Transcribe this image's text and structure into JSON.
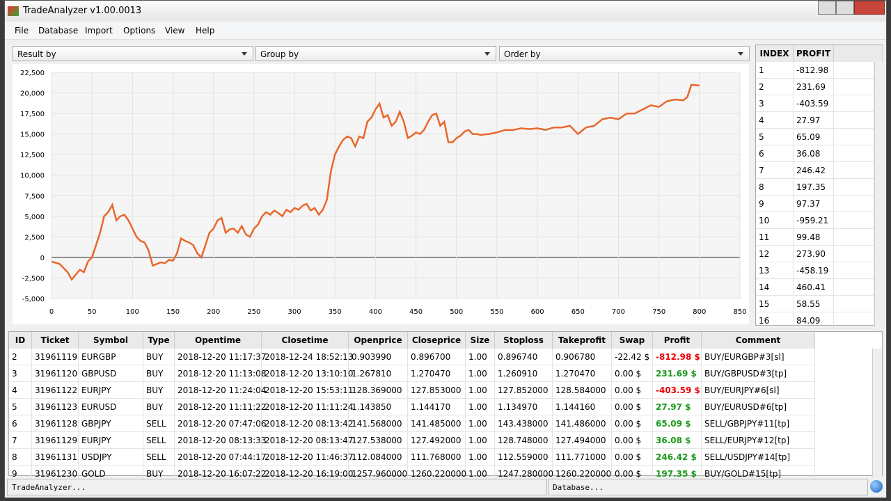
{
  "window_title": "TradeAnalyzer v1.00.0013",
  "menu": [
    "File",
    "Database",
    "Import",
    "Options",
    "View",
    "Help"
  ],
  "filters": [
    "Result by",
    "Group by",
    "Order by"
  ],
  "chart_data": {
    "type": "line",
    "color": "#e8672a",
    "grid": true,
    "x": [
      0,
      10,
      20,
      25,
      35,
      40,
      45,
      50,
      55,
      60,
      65,
      70,
      75,
      80,
      85,
      90,
      95,
      100,
      105,
      110,
      115,
      120,
      125,
      130,
      135,
      140,
      145,
      150,
      155,
      160,
      165,
      170,
      175,
      180,
      185,
      190,
      195,
      200,
      205,
      210,
      215,
      220,
      225,
      230,
      235,
      240,
      245,
      250,
      255,
      260,
      265,
      270,
      275,
      280,
      285,
      290,
      295,
      300,
      305,
      310,
      315,
      320,
      325,
      330,
      335,
      340,
      345,
      350,
      355,
      360,
      365,
      370,
      375,
      380,
      385,
      390,
      395,
      400,
      405,
      410,
      415,
      420,
      425,
      430,
      435,
      440,
      445,
      450,
      455,
      460,
      465,
      470,
      475,
      480,
      485,
      490,
      495,
      500,
      505,
      510,
      515,
      520,
      525,
      530,
      540,
      550,
      560,
      570,
      580,
      590,
      600,
      610,
      620,
      630,
      640,
      650,
      660,
      670,
      680,
      690,
      700,
      710,
      720,
      730,
      740,
      750,
      760,
      770,
      780,
      785,
      790,
      800
    ],
    "values": [
      -500,
      -800,
      -1800,
      -2700,
      -1500,
      -1800,
      -500,
      0,
      1500,
      3000,
      5000,
      5500,
      6400,
      4500,
      5000,
      5200,
      4500,
      3500,
      2500,
      2000,
      1800,
      800,
      -1000,
      -800,
      -600,
      -700,
      -300,
      -400,
      500,
      2300,
      2000,
      1800,
      1500,
      500,
      0,
      1500,
      3000,
      3500,
      4500,
      4800,
      3000,
      3400,
      3500,
      3000,
      3800,
      2800,
      2500,
      3500,
      4000,
      5000,
      5500,
      5200,
      5700,
      5400,
      5000,
      5800,
      5500,
      6000,
      5800,
      6300,
      6500,
      5700,
      6000,
      5200,
      5800,
      7000,
      10500,
      12500,
      13500,
      14300,
      14700,
      14500,
      13500,
      14700,
      14500,
      16500,
      17000,
      18000,
      18700,
      17000,
      17300,
      16000,
      16500,
      17700,
      16500,
      14500,
      14800,
      15200,
      15000,
      15500,
      16500,
      17300,
      17500,
      16000,
      16500,
      14000,
      14000,
      14500,
      14800,
      15300,
      15500,
      15000,
      15000,
      14900,
      15000,
      15200,
      15500,
      15500,
      15700,
      15600,
      15700,
      15500,
      15800,
      15800,
      16000,
      15000,
      15800,
      16000,
      16800,
      17000,
      16800,
      17500,
      17500,
      18000,
      18500,
      18300,
      19000,
      19200,
      19100,
      19500,
      21000,
      20900
    ],
    "xlim": [
      0,
      850
    ],
    "xticks": [
      0,
      50,
      100,
      150,
      200,
      250,
      300,
      350,
      400,
      450,
      500,
      550,
      600,
      650,
      700,
      750,
      800,
      850
    ],
    "ylim": [
      -5000,
      22500
    ],
    "yticks": [
      {
        "value": -5000,
        "label": "-5,000"
      },
      {
        "value": -2500,
        "label": "-2,500"
      },
      0,
      {
        "value": 2500,
        "label": "2,500"
      },
      {
        "value": 5000,
        "label": "5,000"
      },
      {
        "value": 7500,
        "label": "7,500"
      },
      {
        "value": 10000,
        "label": "10,000"
      },
      {
        "value": 12500,
        "label": "12,500"
      },
      {
        "value": 15000,
        "label": "15,000"
      },
      {
        "value": 17500,
        "label": "17,500"
      },
      {
        "value": 20000,
        "label": "20,000"
      },
      {
        "value": 22500,
        "label": "22,500"
      }
    ]
  },
  "side_list": {
    "columns": [
      "INDEX",
      "PROFIT"
    ],
    "rows": [
      [
        "1",
        "-812.98"
      ],
      [
        "2",
        "231.69"
      ],
      [
        "3",
        "-403.59"
      ],
      [
        "4",
        "27.97"
      ],
      [
        "5",
        "65.09"
      ],
      [
        "6",
        "36.08"
      ],
      [
        "7",
        "246.42"
      ],
      [
        "8",
        "197.35"
      ],
      [
        "9",
        "97.37"
      ],
      [
        "10",
        "-959.21"
      ],
      [
        "11",
        "99.48"
      ],
      [
        "12",
        "273.90"
      ],
      [
        "13",
        "-458.19"
      ],
      [
        "14",
        "460.41"
      ],
      [
        "15",
        "58.55"
      ],
      [
        "16",
        "84.09"
      ]
    ]
  },
  "table": {
    "columns": [
      "ID",
      "Ticket",
      "Symbol",
      "Type",
      "Opentime",
      "Closetime",
      "Openprice",
      "Closeprice",
      "Size",
      "Stoploss",
      "Takeprofit",
      "Swap",
      "Profit",
      "Comment"
    ],
    "rows": [
      [
        "2",
        "31961119",
        "EURGBP",
        "BUY",
        "2018-12-20 11:17:37",
        "2018-12-24 18:52:13",
        "0.903990",
        "0.896700",
        "1.00",
        "0.896740",
        "0.906780",
        "-22.42 $",
        "-812.98 $",
        "BUY/EURGBP#3[sl]"
      ],
      [
        "3",
        "31961120",
        "GBPUSD",
        "BUY",
        "2018-12-20 11:13:08",
        "2018-12-20 13:10:10",
        "1.267810",
        "1.270470",
        "1.00",
        "1.260910",
        "1.270470",
        "0.00 $",
        "231.69 $",
        "BUY/GBPUSD#3[tp]"
      ],
      [
        "4",
        "31961122",
        "EURJPY",
        "BUY",
        "2018-12-20 11:24:04",
        "2018-12-20 15:53:11",
        "128.369000",
        "127.853000",
        "1.00",
        "127.852000",
        "128.584000",
        "0.00 $",
        "-403.59 $",
        "BUY/EURJPY#6[sl]"
      ],
      [
        "5",
        "31961123",
        "EURUSD",
        "BUY",
        "2018-12-20 11:11:22",
        "2018-12-20 11:11:24",
        "1.143850",
        "1.144170",
        "1.00",
        "1.134970",
        "1.144160",
        "0.00 $",
        "27.97 $",
        "BUY/EURUSD#6[tp]"
      ],
      [
        "6",
        "31961128",
        "GBPJPY",
        "SELL",
        "2018-12-20 07:47:06",
        "2018-12-20 08:13:42",
        "141.568000",
        "141.485000",
        "1.00",
        "143.438000",
        "141.486000",
        "0.00 $",
        "65.09 $",
        "SELL/GBPJPY#11[tp]"
      ],
      [
        "7",
        "31961129",
        "EURJPY",
        "SELL",
        "2018-12-20 08:13:33",
        "2018-12-20 08:13:47",
        "127.538000",
        "127.492000",
        "1.00",
        "128.748000",
        "127.494000",
        "0.00 $",
        "36.08 $",
        "SELL/EURJPY#12[tp]"
      ],
      [
        "8",
        "31961131",
        "USDJPY",
        "SELL",
        "2018-12-20 07:44:17",
        "2018-12-20 11:46:37",
        "112.084000",
        "111.768000",
        "1.00",
        "112.559000",
        "111.771000",
        "0.00 $",
        "246.42 $",
        "SELL/USDJPY#14[tp]"
      ],
      [
        "9",
        "31961230",
        "GOLD",
        "BUY",
        "2018-12-20 16:07:22",
        "2018-12-20 16:19:00",
        "1257.960000",
        "1260.220000",
        "1.00",
        "1247.280000",
        "1260.220000",
        "0.00 $",
        "197.35 $",
        "BUY/GOLD#15[tp]"
      ]
    ]
  },
  "status": [
    "TradeAnalyzer...",
    "Database..."
  ]
}
